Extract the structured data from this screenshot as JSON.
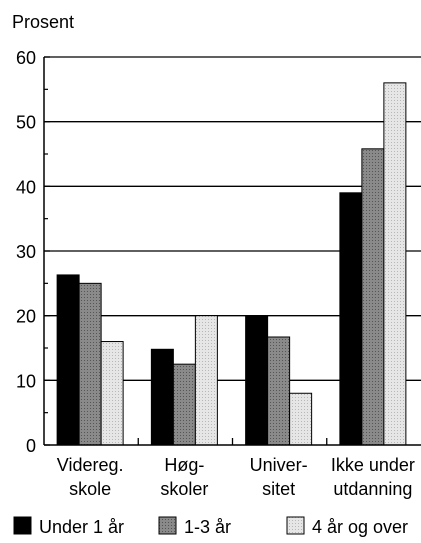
{
  "chart_data": {
    "type": "bar",
    "ylabel": "Prosent",
    "ylim": [
      0,
      60
    ],
    "yticks": [
      "0",
      "10",
      "20",
      "30",
      "40",
      "50",
      "60"
    ],
    "grid": true,
    "legend_position": "bottom",
    "categories": [
      [
        "Videreg.",
        "skole"
      ],
      [
        "Høg-",
        "skoler"
      ],
      [
        "Univer-",
        "sitet"
      ],
      [
        "Ikke under",
        "utdanning"
      ]
    ],
    "series": [
      {
        "name": "Under 1 år",
        "color": "#000000",
        "values": [
          26.3,
          14.8,
          20.0,
          39.0
        ]
      },
      {
        "name": "1-3 år",
        "color": "#808080",
        "values": [
          25.0,
          12.5,
          16.7,
          45.8
        ]
      },
      {
        "name": "4 år og over",
        "color": "#e3e3e3",
        "values": [
          16.0,
          20.0,
          8.0,
          56.0
        ]
      }
    ]
  }
}
